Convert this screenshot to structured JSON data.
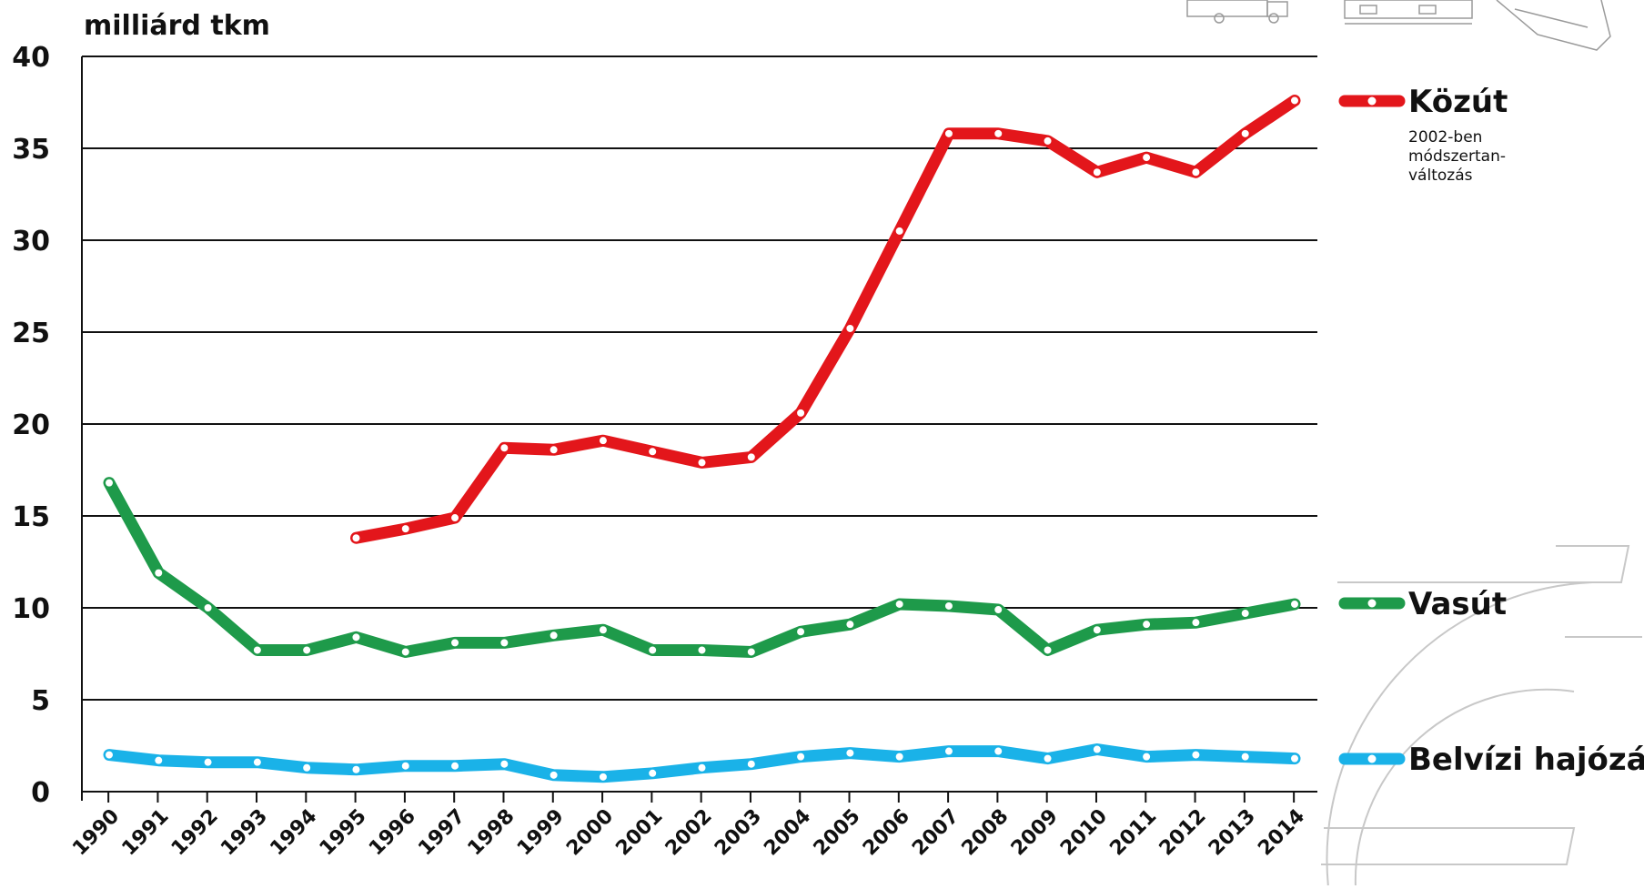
{
  "chart_data": {
    "type": "line",
    "ylabel": "milliárd tkm",
    "ylim": [
      0,
      40
    ],
    "y_ticks": [
      0,
      5,
      10,
      15,
      20,
      25,
      30,
      35,
      40
    ],
    "grid": "horizontal",
    "legend_position": "right",
    "categories": [
      "1990",
      "1991",
      "1992",
      "1993",
      "1994",
      "1995",
      "1996",
      "1997",
      "1998",
      "1999",
      "2000",
      "2001",
      "2002",
      "2003",
      "2004",
      "2005",
      "2006",
      "2007",
      "2008",
      "2009",
      "2010",
      "2011",
      "2012",
      "2013",
      "2014"
    ],
    "series": [
      {
        "name": "Közút",
        "color": "#e3161b",
        "note_lines": [
          "2002-ben",
          "módszertan-",
          "változás"
        ],
        "values": [
          null,
          null,
          null,
          null,
          null,
          13.8,
          14.3,
          14.9,
          18.7,
          18.6,
          19.1,
          18.5,
          17.9,
          18.2,
          20.6,
          25.2,
          30.5,
          35.8,
          35.8,
          35.4,
          33.7,
          34.5,
          33.7,
          35.8,
          37.6
        ]
      },
      {
        "name": "Vasút",
        "color": "#1e9a4a",
        "values": [
          16.8,
          11.9,
          10.0,
          7.7,
          7.7,
          8.4,
          7.6,
          8.1,
          8.1,
          8.5,
          8.8,
          7.7,
          7.7,
          7.6,
          8.7,
          9.1,
          10.2,
          10.1,
          9.9,
          7.7,
          8.8,
          9.1,
          9.2,
          9.7,
          10.2
        ]
      },
      {
        "name": "Belvízi hajózás",
        "color": "#1ab2e8",
        "values": [
          2.0,
          1.7,
          1.6,
          1.6,
          1.3,
          1.2,
          1.4,
          1.4,
          1.5,
          0.9,
          0.8,
          1.0,
          1.3,
          1.5,
          1.9,
          2.1,
          1.9,
          2.2,
          2.2,
          1.8,
          2.3,
          1.9,
          2.0,
          1.9,
          1.8
        ]
      }
    ]
  },
  "decorations": {
    "top_right_icons": [
      "truck-icon",
      "train-icon",
      "ship-icon"
    ],
    "background_mark": "euro-sign-watermark"
  }
}
